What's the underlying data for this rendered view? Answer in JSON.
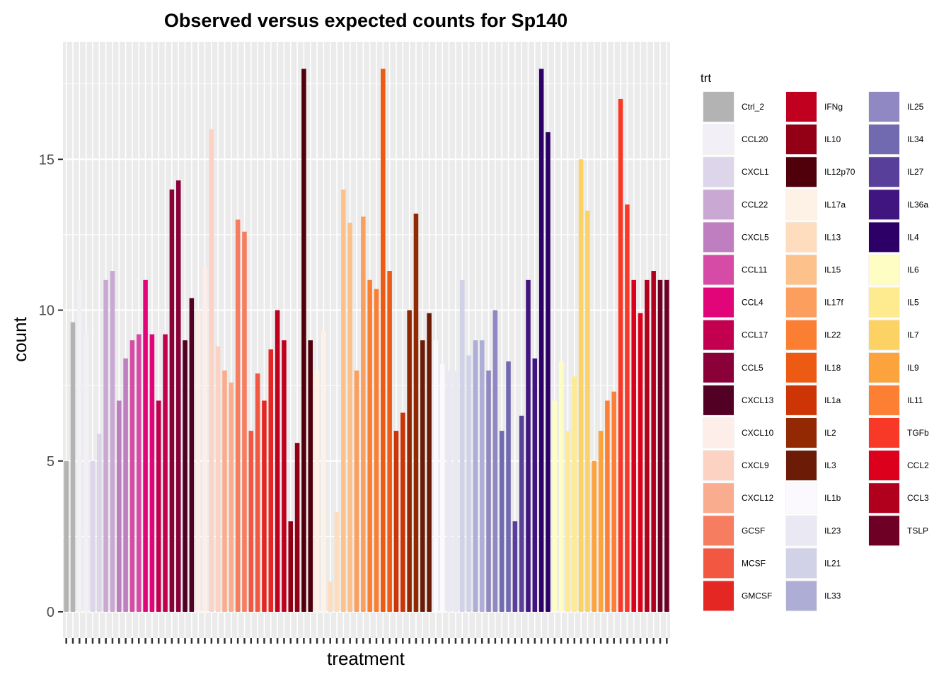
{
  "chart_data": {
    "type": "bar",
    "title": "Observed versus expected counts for Sp140",
    "xlabel": "treatment",
    "ylabel": "count",
    "ylim": [
      0,
      18.6
    ],
    "yticks": [
      0,
      5,
      10,
      15
    ],
    "grid": true,
    "legend": {
      "title": "trt",
      "placement": "right"
    },
    "series": [
      {
        "name": "Ctrl_2",
        "color": "#B3B3B3",
        "values": [
          5.0,
          9.6
        ]
      },
      {
        "name": "CCL20",
        "color": "#F3EFF6",
        "values": [
          11.0,
          9.2
        ]
      },
      {
        "name": "CXCL1",
        "color": "#DDD5E9",
        "values": [
          5.0,
          5.9
        ]
      },
      {
        "name": "CCL22",
        "color": "#C9A9D3",
        "values": [
          11.0,
          11.3
        ]
      },
      {
        "name": "CXCL5",
        "color": "#BE7EBF",
        "values": [
          7.0,
          8.4
        ]
      },
      {
        "name": "CCL11",
        "color": "#D64BA5",
        "values": [
          9.0,
          9.2
        ]
      },
      {
        "name": "CCL4",
        "color": "#E2057A",
        "values": [
          11.0,
          9.2
        ]
      },
      {
        "name": "CCL17",
        "color": "#C3004F",
        "values": [
          7.0,
          9.2
        ]
      },
      {
        "name": "CCL5",
        "color": "#8A0039",
        "values": [
          14.0,
          14.3
        ]
      },
      {
        "name": "CXCL13",
        "color": "#520024",
        "values": [
          9.0,
          10.4
        ]
      },
      {
        "name": "CXCL10",
        "color": "#FDEEEA",
        "values": [
          10.0,
          11.4
        ]
      },
      {
        "name": "CXCL9",
        "color": "#FCD3C3",
        "values": [
          16.0,
          8.8
        ]
      },
      {
        "name": "CXCL12",
        "color": "#FAAC8E",
        "values": [
          8.0,
          7.6
        ]
      },
      {
        "name": "GCSF",
        "color": "#F77D60",
        "values": [
          13.0,
          12.6
        ]
      },
      {
        "name": "MCSF",
        "color": "#F25841",
        "values": [
          6.0,
          7.9
        ]
      },
      {
        "name": "GMCSF",
        "color": "#E42723",
        "values": [
          7.0,
          8.7
        ]
      },
      {
        "name": "IFNg",
        "color": "#C0001E",
        "values": [
          10.0,
          9.0
        ]
      },
      {
        "name": "IL10",
        "color": "#930015",
        "values": [
          3.0,
          5.6
        ]
      },
      {
        "name": "IL12p70",
        "color": "#50000B",
        "values": [
          18.0,
          9.0
        ]
      },
      {
        "name": "IL17a",
        "color": "#FEF2E6",
        "values": [
          8.0,
          9.3
        ]
      },
      {
        "name": "IL13",
        "color": "#FDDDBE",
        "values": [
          1.0,
          3.3
        ]
      },
      {
        "name": "IL15",
        "color": "#FDC18B",
        "values": [
          14.0,
          12.9
        ]
      },
      {
        "name": "IL17f",
        "color": "#FC9F5E",
        "values": [
          8.0,
          13.1
        ]
      },
      {
        "name": "IL22",
        "color": "#FA7F32",
        "values": [
          11.0,
          10.7
        ]
      },
      {
        "name": "IL18",
        "color": "#EC5A14",
        "values": [
          18.0,
          11.3
        ]
      },
      {
        "name": "IL1a",
        "color": "#CE3506",
        "values": [
          6.0,
          6.6
        ]
      },
      {
        "name": "IL2",
        "color": "#922903",
        "values": [
          10.0,
          13.2
        ]
      },
      {
        "name": "IL3",
        "color": "#6C1C06",
        "values": [
          9.0,
          9.9
        ]
      },
      {
        "name": "IL1b",
        "color": "#FBF9FD",
        "values": [
          9.0,
          8.2
        ]
      },
      {
        "name": "IL23",
        "color": "#EAE9F3",
        "values": [
          8.0,
          8.0
        ]
      },
      {
        "name": "IL21",
        "color": "#D1D2E7",
        "values": [
          11.0,
          8.5
        ]
      },
      {
        "name": "IL33",
        "color": "#ADADD5",
        "values": [
          9.0,
          9.0
        ]
      },
      {
        "name": "IL25",
        "color": "#8F88C2",
        "values": [
          8.0,
          10.0
        ]
      },
      {
        "name": "IL34",
        "color": "#716AB0",
        "values": [
          6.0,
          8.3
        ]
      },
      {
        "name": "IL27",
        "color": "#58409A",
        "values": [
          3.0,
          6.5
        ]
      },
      {
        "name": "IL36a",
        "color": "#411580",
        "values": [
          11.0,
          8.4
        ]
      },
      {
        "name": "IL4",
        "color": "#2C0066",
        "values": [
          18.0,
          15.9
        ]
      },
      {
        "name": "IL6",
        "color": "#FEFEC4",
        "values": [
          7.0,
          8.3
        ]
      },
      {
        "name": "IL5",
        "color": "#FFEB8F",
        "values": [
          6.0,
          7.8
        ]
      },
      {
        "name": "IL7",
        "color": "#FDD265",
        "values": [
          15.0,
          13.3
        ]
      },
      {
        "name": "IL9",
        "color": "#FCA33E",
        "values": [
          5.0,
          6.0
        ]
      },
      {
        "name": "IL11",
        "color": "#FC7F34",
        "values": [
          7.0,
          7.3
        ]
      },
      {
        "name": "TGFb",
        "color": "#F93927",
        "values": [
          17.0,
          13.5
        ]
      },
      {
        "name": "CCL2",
        "color": "#DD001C",
        "values": [
          11.0,
          9.9
        ]
      },
      {
        "name": "CCL3",
        "color": "#B1001E",
        "values": [
          11.0,
          11.3
        ]
      },
      {
        "name": "TSLP",
        "color": "#6D0024",
        "values": [
          11.0,
          11.0
        ]
      }
    ]
  }
}
